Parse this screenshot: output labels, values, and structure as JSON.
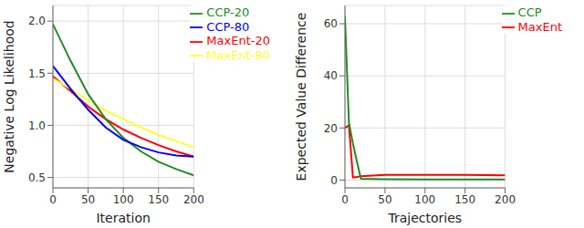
{
  "chart_data": [
    {
      "type": "line",
      "x_label": "Iteration",
      "y_label": "Negative Log Likelihood",
      "x": [
        0,
        25,
        50,
        75,
        100,
        125,
        150,
        175,
        200
      ],
      "series": [
        {
          "name": "MaxEnt-20",
          "color": "#ff0000",
          "values": [
            1.47,
            1.33,
            1.18,
            1.06,
            0.96,
            0.88,
            0.81,
            0.75,
            0.7
          ]
        },
        {
          "name": "MaxEnt-80",
          "color": "#ffff33",
          "values": [
            1.45,
            1.35,
            1.24,
            1.14,
            1.06,
            0.98,
            0.91,
            0.85,
            0.79
          ]
        },
        {
          "name": "CCP-20",
          "color": "#228b22",
          "values": [
            1.97,
            1.62,
            1.3,
            1.06,
            0.88,
            0.75,
            0.65,
            0.58,
            0.52
          ]
        },
        {
          "name": "CCP-80",
          "color": "#0000ff",
          "values": [
            1.57,
            1.35,
            1.15,
            0.98,
            0.86,
            0.79,
            0.74,
            0.71,
            0.7
          ]
        }
      ],
      "xlim": [
        0,
        200
      ],
      "xticks": [
        0,
        50,
        100,
        150,
        200
      ],
      "ylim": [
        0.4,
        2.15
      ],
      "yticks": [
        0.5,
        {
          "value": 1,
          "label": "1.0"
        },
        1.5,
        {
          "value": 2,
          "label": "2.0"
        }
      ],
      "grid": true,
      "legend": "upper right"
    },
    {
      "type": "line",
      "x_label": "Trajectories",
      "y_label": "Expected Value Difference",
      "x": [
        0,
        5,
        10,
        15,
        20,
        50,
        100,
        150,
        200
      ],
      "series": [
        {
          "name": "MaxEnt",
          "color": "#ff0000",
          "values": [
            20,
            21,
            1,
            1.2,
            1.5,
            2,
            2,
            2,
            1.8
          ]
        },
        {
          "name": "CCP",
          "color": "#228b22",
          "values": [
            63,
            22,
            14,
            7,
            0.5,
            0.3,
            0.2,
            0.2,
            0.2
          ]
        }
      ],
      "xlim": [
        0,
        200
      ],
      "xticks": [
        0,
        50,
        100,
        150,
        200
      ],
      "ylim": [
        -3,
        67
      ],
      "yticks": [
        0,
        20,
        40,
        60
      ],
      "grid": true,
      "legend": "upper right"
    }
  ]
}
